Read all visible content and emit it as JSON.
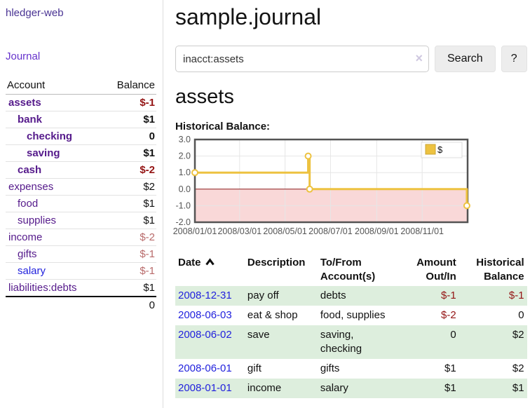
{
  "app": {
    "brand": "hledger-web",
    "nav_journal": "Journal"
  },
  "sidebar": {
    "col_account": "Account",
    "col_balance": "Balance",
    "accounts": [
      {
        "name": "assets",
        "indent": 1,
        "bold": true,
        "balance": "$-1",
        "tone": "neg",
        "link": "purple"
      },
      {
        "name": "bank",
        "indent": 2,
        "bold": true,
        "balance": "$1",
        "tone": null,
        "link": "purple"
      },
      {
        "name": "checking",
        "indent": 3,
        "bold": true,
        "balance": "0",
        "tone": null,
        "link": "purple"
      },
      {
        "name": "saving",
        "indent": 3,
        "bold": true,
        "balance": "$1",
        "tone": null,
        "link": "purple"
      },
      {
        "name": "cash",
        "indent": 2,
        "bold": true,
        "balance": "$-2",
        "tone": "neg",
        "link": "purple"
      },
      {
        "name": "expenses",
        "indent": 1,
        "bold": false,
        "balance": "$2",
        "tone": null,
        "link": "purple"
      },
      {
        "name": "food",
        "indent": 2,
        "bold": false,
        "balance": "$1",
        "tone": null,
        "link": "purple"
      },
      {
        "name": "supplies",
        "indent": 2,
        "bold": false,
        "balance": "$1",
        "tone": null,
        "link": "purple"
      },
      {
        "name": "income",
        "indent": 1,
        "bold": false,
        "balance": "$-2",
        "tone": "negm",
        "link": "purple"
      },
      {
        "name": "gifts",
        "indent": 2,
        "bold": false,
        "balance": "$-1",
        "tone": "negm",
        "link": "purple"
      },
      {
        "name": "salary",
        "indent": 2,
        "bold": false,
        "balance": "$-1",
        "tone": "negm",
        "link": "blue"
      },
      {
        "name": "liabilities:debts",
        "indent": 1,
        "bold": false,
        "balance": "$1",
        "tone": null,
        "link": "purple"
      }
    ],
    "total": "0"
  },
  "main": {
    "title": "sample.journal",
    "search": {
      "value": "inacct:assets",
      "clear_icon": "×",
      "button": "Search",
      "help": "?"
    },
    "heading": "assets",
    "chart_label": "Historical Balance:"
  },
  "chart_data": {
    "type": "line",
    "step": true,
    "title": "Historical Balance:",
    "series": [
      {
        "name": "$",
        "color": "#edc240",
        "points": [
          [
            "2008-01-01",
            1.0
          ],
          [
            "2008-06-01",
            2.0
          ],
          [
            "2008-06-03",
            0.0
          ],
          [
            "2008-12-31",
            -1.0
          ]
        ]
      }
    ],
    "x_range": [
      "2008-01-01",
      "2009-01-01"
    ],
    "x_tick_dates": [
      "2008-01-01",
      "2008-03-01",
      "2008-05-01",
      "2008-07-01",
      "2008-09-01",
      "2008-11-01"
    ],
    "x_tick_labels": [
      "2008/01/01",
      "2008/03/01",
      "2008/05/01",
      "2008/07/01",
      "2008/09/01",
      "2008/11/01"
    ],
    "y_ticks": [
      3.0,
      2.0,
      1.0,
      0.0,
      -1.0,
      -2.0
    ],
    "ylim": [
      -2.0,
      3.0
    ],
    "grid": true,
    "negative_region_color": "#f9d8d8",
    "zero_line_color": "#8b1a1a",
    "border_color": "#545454",
    "legend": {
      "position": "top-right",
      "label": "$",
      "swatch_color": "#edc240",
      "swatch_border": "#cba635"
    }
  },
  "table": {
    "headers": [
      {
        "label": "Date",
        "sorted": "asc"
      },
      {
        "label": "Description"
      },
      {
        "label": "To/From\nAccount(s)"
      },
      {
        "label": "Amount\nOut/In"
      },
      {
        "label": "Historical\nBalance"
      }
    ],
    "rows": [
      {
        "date": "2008-12-31",
        "description": "pay off",
        "accounts": "debts",
        "amount": "$-1",
        "amount_negative": true,
        "balance": "$-1",
        "balance_negative": true,
        "shaded": true
      },
      {
        "date": "2008-06-03",
        "description": "eat & shop",
        "accounts": "food, supplies",
        "amount": "$-2",
        "amount_negative": true,
        "balance": "0",
        "balance_negative": false,
        "shaded": false
      },
      {
        "date": "2008-06-02",
        "description": "save",
        "accounts": "saving, checking",
        "amount": "0",
        "amount_negative": false,
        "balance": "$2",
        "balance_negative": false,
        "shaded": true
      },
      {
        "date": "2008-06-01",
        "description": "gift",
        "accounts": "gifts",
        "amount": "$1",
        "amount_negative": false,
        "balance": "$2",
        "balance_negative": false,
        "shaded": false
      },
      {
        "date": "2008-01-01",
        "description": "income",
        "accounts": "salary",
        "amount": "$1",
        "amount_negative": false,
        "balance": "$1",
        "balance_negative": false,
        "shaded": true
      }
    ]
  }
}
